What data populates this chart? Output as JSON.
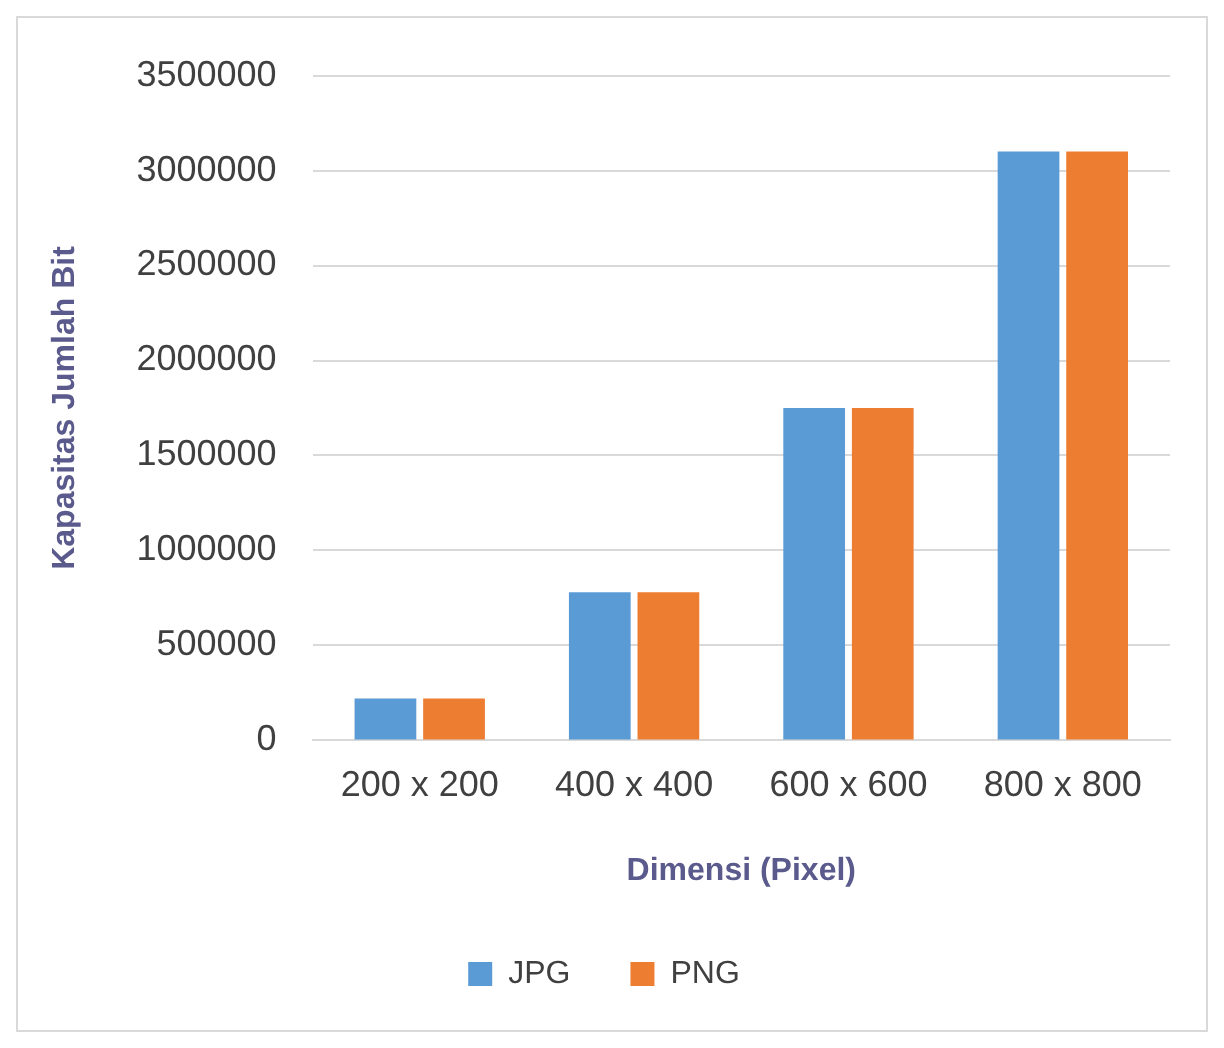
{
  "chart_data": {
    "type": "bar",
    "categories": [
      "200 x 200",
      "400 x 400",
      "600 x 600",
      "800 x 800"
    ],
    "series": [
      {
        "name": "JPG",
        "color": "#5b9bd5",
        "values": [
          220000,
          780000,
          1750000,
          3100000
        ]
      },
      {
        "name": "PNG",
        "color": "#ed7d31",
        "values": [
          220000,
          780000,
          1750000,
          3100000
        ]
      }
    ],
    "xlabel": "Dimensi (Pixel)",
    "ylabel": "Kapasitas Jumlah Bit",
    "ylim": [
      0,
      3500000
    ],
    "yticks": [
      0,
      500000,
      1000000,
      1500000,
      2000000,
      2500000,
      3000000,
      3500000
    ],
    "grid": "y",
    "legend": "bottom"
  }
}
